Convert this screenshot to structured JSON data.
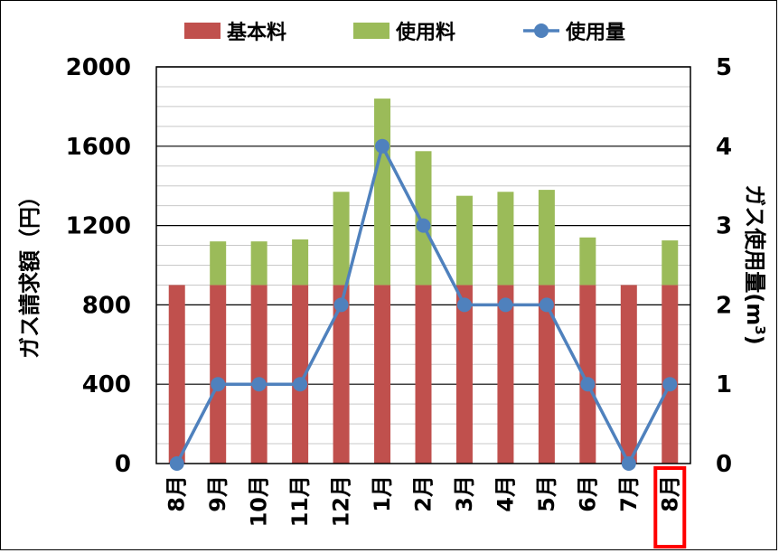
{
  "chart_data": {
    "type": "bar",
    "stacked": true,
    "categories": [
      "8月",
      "9月",
      "10月",
      "11月",
      "12月",
      "1月",
      "2月",
      "3月",
      "4月",
      "5月",
      "6月",
      "7月",
      "8月"
    ],
    "series": [
      {
        "name": "基本料",
        "type": "bar",
        "axis": "left",
        "color": "#C0504D",
        "values": [
          900,
          900,
          900,
          900,
          900,
          900,
          900,
          900,
          900,
          900,
          900,
          900,
          900
        ]
      },
      {
        "name": "使用料",
        "type": "bar",
        "axis": "left",
        "color": "#9BBB59",
        "values": [
          0,
          220,
          220,
          230,
          470,
          940,
          675,
          450,
          470,
          480,
          240,
          0,
          225
        ]
      },
      {
        "name": "使用量",
        "type": "line",
        "axis": "right",
        "color": "#4F81BD",
        "values": [
          0,
          1,
          1,
          1,
          2,
          4,
          3,
          2,
          2,
          2,
          1,
          0,
          1
        ]
      }
    ],
    "ylabel": "ガス請求額（円）",
    "ylabel_right": "ガス使用量(m3)",
    "ylim": [
      0,
      2000
    ],
    "ylim_right": [
      0,
      5
    ],
    "yticks": [
      "0",
      "400",
      "800",
      "1200",
      "1600",
      "2000"
    ],
    "yticks_right": [
      "0",
      "1",
      "2",
      "3",
      "4",
      "5"
    ],
    "grid": true,
    "legend": "top",
    "highlight_category_index": 12,
    "highlight_color": "#FF0000"
  }
}
